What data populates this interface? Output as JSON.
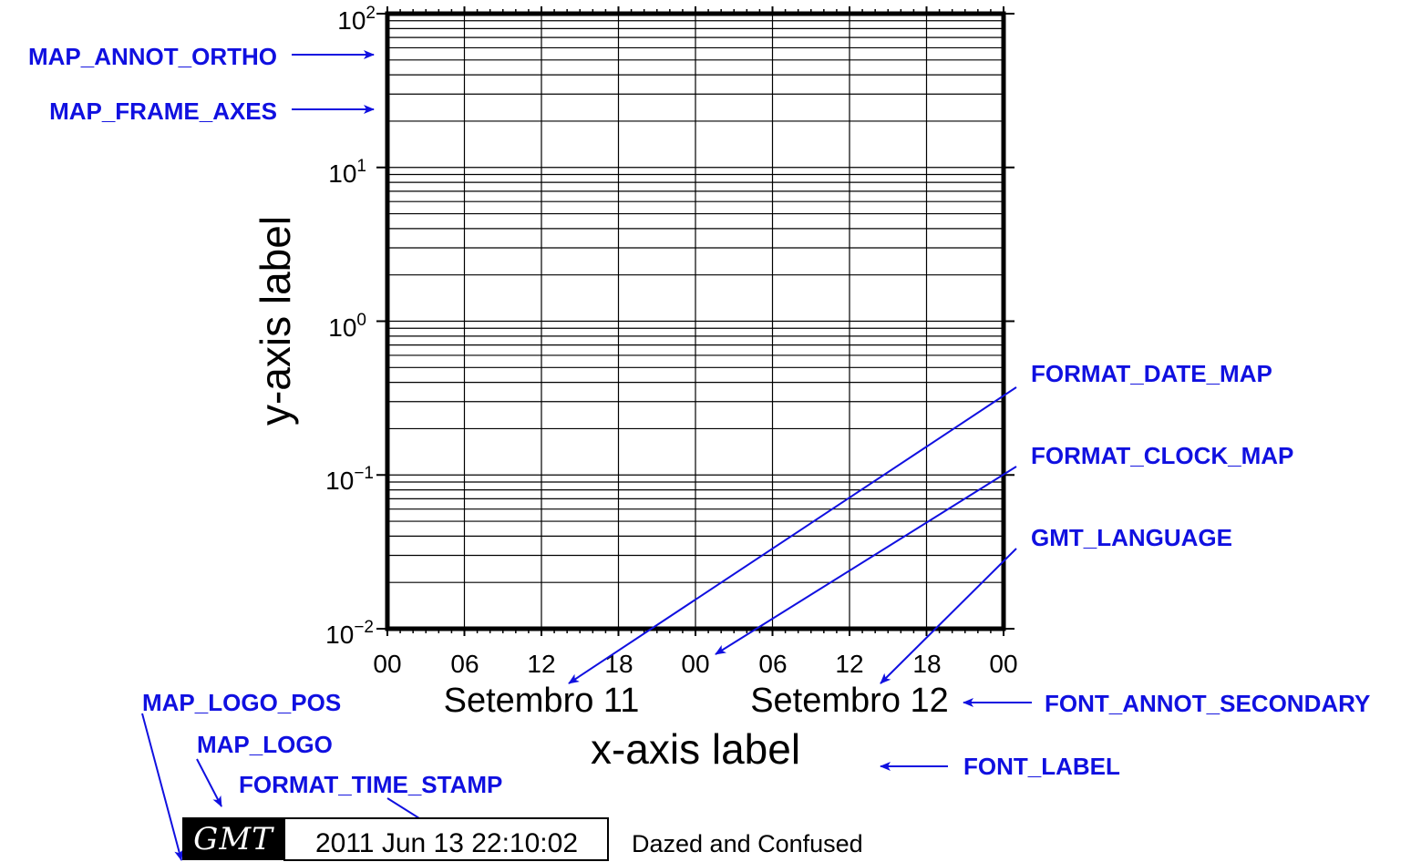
{
  "colors": {
    "annotation": "#1010e0",
    "frame": "#000000",
    "logo_bg": "#000000",
    "logo_fg": "#ffffff"
  },
  "chart_data": {
    "type": "line",
    "xaxis": {
      "tick_labels": [
        "00",
        "06",
        "12",
        "18",
        "00",
        "06",
        "12",
        "18",
        "00"
      ],
      "secondary_labels": [
        "Setembro 11",
        "Setembro 12"
      ],
      "label": "x-axis label"
    },
    "yaxis": {
      "scale": "log",
      "ylim": [
        0.01,
        100
      ],
      "tick_labels": [
        {
          "base": "10",
          "exp": "2"
        },
        {
          "base": "10",
          "exp": "1"
        },
        {
          "base": "10",
          "exp": "0"
        },
        {
          "base": "10",
          "exp": "−1"
        },
        {
          "base": "10",
          "exp": "−2"
        }
      ],
      "label": "y-axis label"
    },
    "grid": true,
    "series": []
  },
  "annotations": {
    "map_annot_ortho": "MAP_ANNOT_ORTHO",
    "map_frame_axes": "MAP_FRAME_AXES",
    "format_date_map": "FORMAT_DATE_MAP",
    "format_clock_map": "FORMAT_CLOCK_MAP",
    "gmt_language": "GMT_LANGUAGE",
    "font_annot_secondary": "FONT_ANNOT_SECONDARY",
    "font_label": "FONT_LABEL",
    "map_logo_pos": "MAP_LOGO_POS",
    "map_logo": "MAP_LOGO",
    "format_time_stamp": "FORMAT_TIME_STAMP"
  },
  "logo": {
    "text": "GMT",
    "timestamp": "2011 Jun 13 22:10:02",
    "label": "Dazed and Confused"
  }
}
